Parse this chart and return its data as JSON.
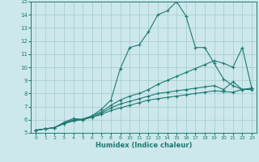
{
  "xlabel": "Humidex (Indice chaleur)",
  "xlim": [
    -0.5,
    23.5
  ],
  "ylim": [
    5,
    15
  ],
  "xticks": [
    0,
    1,
    2,
    3,
    4,
    5,
    6,
    7,
    8,
    9,
    10,
    11,
    12,
    13,
    14,
    15,
    16,
    17,
    18,
    19,
    20,
    21,
    22,
    23
  ],
  "yticks": [
    5,
    6,
    7,
    8,
    9,
    10,
    11,
    12,
    13,
    14,
    15
  ],
  "bg_color": "#cce8ec",
  "grid_color": "#aacdd2",
  "line_color": "#1e7a70",
  "series1": [
    [
      0,
      5.2
    ],
    [
      1,
      5.3
    ],
    [
      2,
      5.4
    ],
    [
      3,
      5.8
    ],
    [
      4,
      6.1
    ],
    [
      5,
      6.0
    ],
    [
      6,
      6.3
    ],
    [
      7,
      6.8
    ],
    [
      8,
      7.5
    ],
    [
      9,
      9.9
    ],
    [
      10,
      11.5
    ],
    [
      11,
      11.7
    ],
    [
      12,
      12.7
    ],
    [
      13,
      14.0
    ],
    [
      14,
      14.3
    ],
    [
      15,
      15.0
    ],
    [
      16,
      13.9
    ],
    [
      17,
      11.5
    ],
    [
      18,
      11.5
    ],
    [
      19,
      10.3
    ],
    [
      20,
      9.1
    ],
    [
      21,
      8.6
    ],
    [
      22,
      8.3
    ],
    [
      23,
      8.3
    ]
  ],
  "series2": [
    [
      0,
      5.2
    ],
    [
      1,
      5.3
    ],
    [
      2,
      5.4
    ],
    [
      3,
      5.75
    ],
    [
      4,
      6.0
    ],
    [
      5,
      6.05
    ],
    [
      6,
      6.3
    ],
    [
      7,
      6.6
    ],
    [
      8,
      7.1
    ],
    [
      9,
      7.5
    ],
    [
      10,
      7.8
    ],
    [
      11,
      8.0
    ],
    [
      12,
      8.3
    ],
    [
      13,
      8.7
    ],
    [
      14,
      9.0
    ],
    [
      15,
      9.3
    ],
    [
      16,
      9.6
    ],
    [
      17,
      9.9
    ],
    [
      18,
      10.2
    ],
    [
      19,
      10.5
    ],
    [
      20,
      10.3
    ],
    [
      21,
      10.0
    ],
    [
      22,
      11.5
    ],
    [
      23,
      8.4
    ]
  ],
  "series3": [
    [
      0,
      5.2
    ],
    [
      1,
      5.3
    ],
    [
      2,
      5.4
    ],
    [
      3,
      5.7
    ],
    [
      4,
      5.95
    ],
    [
      5,
      6.0
    ],
    [
      6,
      6.2
    ],
    [
      7,
      6.5
    ],
    [
      8,
      6.9
    ],
    [
      9,
      7.2
    ],
    [
      10,
      7.4
    ],
    [
      11,
      7.6
    ],
    [
      12,
      7.8
    ],
    [
      13,
      8.0
    ],
    [
      14,
      8.1
    ],
    [
      15,
      8.2
    ],
    [
      16,
      8.3
    ],
    [
      17,
      8.4
    ],
    [
      18,
      8.5
    ],
    [
      19,
      8.6
    ],
    [
      20,
      8.3
    ],
    [
      21,
      8.9
    ],
    [
      22,
      8.3
    ],
    [
      23,
      8.4
    ]
  ],
  "series4": [
    [
      0,
      5.2
    ],
    [
      1,
      5.3
    ],
    [
      2,
      5.4
    ],
    [
      3,
      5.7
    ],
    [
      4,
      5.9
    ],
    [
      5,
      6.0
    ],
    [
      6,
      6.2
    ],
    [
      7,
      6.4
    ],
    [
      8,
      6.7
    ],
    [
      9,
      6.9
    ],
    [
      10,
      7.1
    ],
    [
      11,
      7.3
    ],
    [
      12,
      7.5
    ],
    [
      13,
      7.6
    ],
    [
      14,
      7.7
    ],
    [
      15,
      7.8
    ],
    [
      16,
      7.9
    ],
    [
      17,
      8.0
    ],
    [
      18,
      8.1
    ],
    [
      19,
      8.2
    ],
    [
      20,
      8.15
    ],
    [
      21,
      8.1
    ],
    [
      22,
      8.3
    ],
    [
      23,
      8.4
    ]
  ]
}
